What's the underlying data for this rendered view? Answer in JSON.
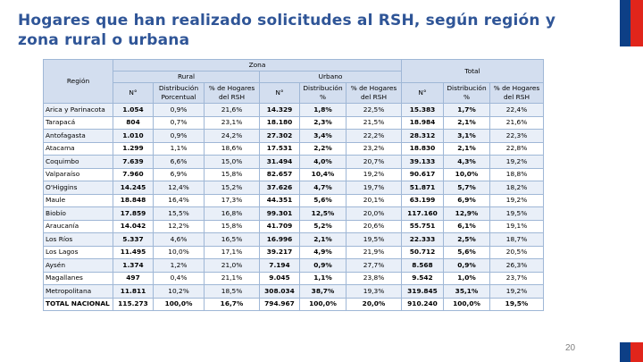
{
  "title": "Hogares que han realizado solicitudes al RSH, según región y zona rural o urbana",
  "page_number": "20",
  "colors": {
    "title": "#2f5597",
    "header_bg": "#d3deef",
    "stripe": "#e9eff8",
    "flag_blue": "#0d3f86",
    "flag_red": "#e1251b"
  },
  "table": {
    "zona_label": "Zona",
    "region_label": "Región",
    "rural_label": "Rural",
    "urbano_label": "Urbano",
    "total_label": "Total",
    "col_n": "N°",
    "col_dist_rural": "Distribución Porcentual",
    "col_pct_rural": "% de Hogares del RSH",
    "col_dist_urbano": "Distribución %",
    "col_pct_urbano": "% de Hogares del RSH",
    "col_dist_total": "Distribución %",
    "col_pct_total": "% de Hogares del RSH",
    "rows": [
      [
        "Arica y Parinacota",
        "1.054",
        "0,9%",
        "21,6%",
        "14.329",
        "1,8%",
        "22,5%",
        "15.383",
        "1,7%",
        "22,4%"
      ],
      [
        "Tarapacá",
        "804",
        "0,7%",
        "23,1%",
        "18.180",
        "2,3%",
        "21,5%",
        "18.984",
        "2,1%",
        "21,6%"
      ],
      [
        "Antofagasta",
        "1.010",
        "0,9%",
        "24,2%",
        "27.302",
        "3,4%",
        "22,2%",
        "28.312",
        "3,1%",
        "22,3%"
      ],
      [
        "Atacama",
        "1.299",
        "1,1%",
        "18,6%",
        "17.531",
        "2,2%",
        "23,2%",
        "18.830",
        "2,1%",
        "22,8%"
      ],
      [
        "Coquimbo",
        "7.639",
        "6,6%",
        "15,0%",
        "31.494",
        "4,0%",
        "20,7%",
        "39.133",
        "4,3%",
        "19,2%"
      ],
      [
        "Valparaíso",
        "7.960",
        "6,9%",
        "15,8%",
        "82.657",
        "10,4%",
        "19,2%",
        "90.617",
        "10,0%",
        "18,8%"
      ],
      [
        "O'Higgins",
        "14.245",
        "12,4%",
        "15,2%",
        "37.626",
        "4,7%",
        "19,7%",
        "51.871",
        "5,7%",
        "18,2%"
      ],
      [
        "Maule",
        "18.848",
        "16,4%",
        "17,3%",
        "44.351",
        "5,6%",
        "20,1%",
        "63.199",
        "6,9%",
        "19,2%"
      ],
      [
        "Biobío",
        "17.859",
        "15,5%",
        "16,8%",
        "99.301",
        "12,5%",
        "20,0%",
        "117.160",
        "12,9%",
        "19,5%"
      ],
      [
        "Araucanía",
        "14.042",
        "12,2%",
        "15,8%",
        "41.709",
        "5,2%",
        "20,6%",
        "55.751",
        "6,1%",
        "19,1%"
      ],
      [
        "Los Ríos",
        "5.337",
        "4,6%",
        "16,5%",
        "16.996",
        "2,1%",
        "19,5%",
        "22.333",
        "2,5%",
        "18,7%"
      ],
      [
        "Los Lagos",
        "11.495",
        "10,0%",
        "17,1%",
        "39.217",
        "4,9%",
        "21,9%",
        "50.712",
        "5,6%",
        "20,5%"
      ],
      [
        "Aysén",
        "1.374",
        "1,2%",
        "21,0%",
        "7.194",
        "0,9%",
        "27,7%",
        "8.568",
        "0,9%",
        "26,3%"
      ],
      [
        "Magallanes",
        "497",
        "0,4%",
        "21,1%",
        "9.045",
        "1,1%",
        "23,8%",
        "9.542",
        "1,0%",
        "23,7%"
      ],
      [
        "Metropolitana",
        "11.811",
        "10,2%",
        "18,5%",
        "308.034",
        "38,7%",
        "19,3%",
        "319.845",
        "35,1%",
        "19,2%"
      ]
    ],
    "total_row": [
      "TOTAL NACIONAL",
      "115.273",
      "100,0%",
      "16,7%",
      "794.967",
      "100,0%",
      "20,0%",
      "910.240",
      "100,0%",
      "19,5%"
    ]
  }
}
